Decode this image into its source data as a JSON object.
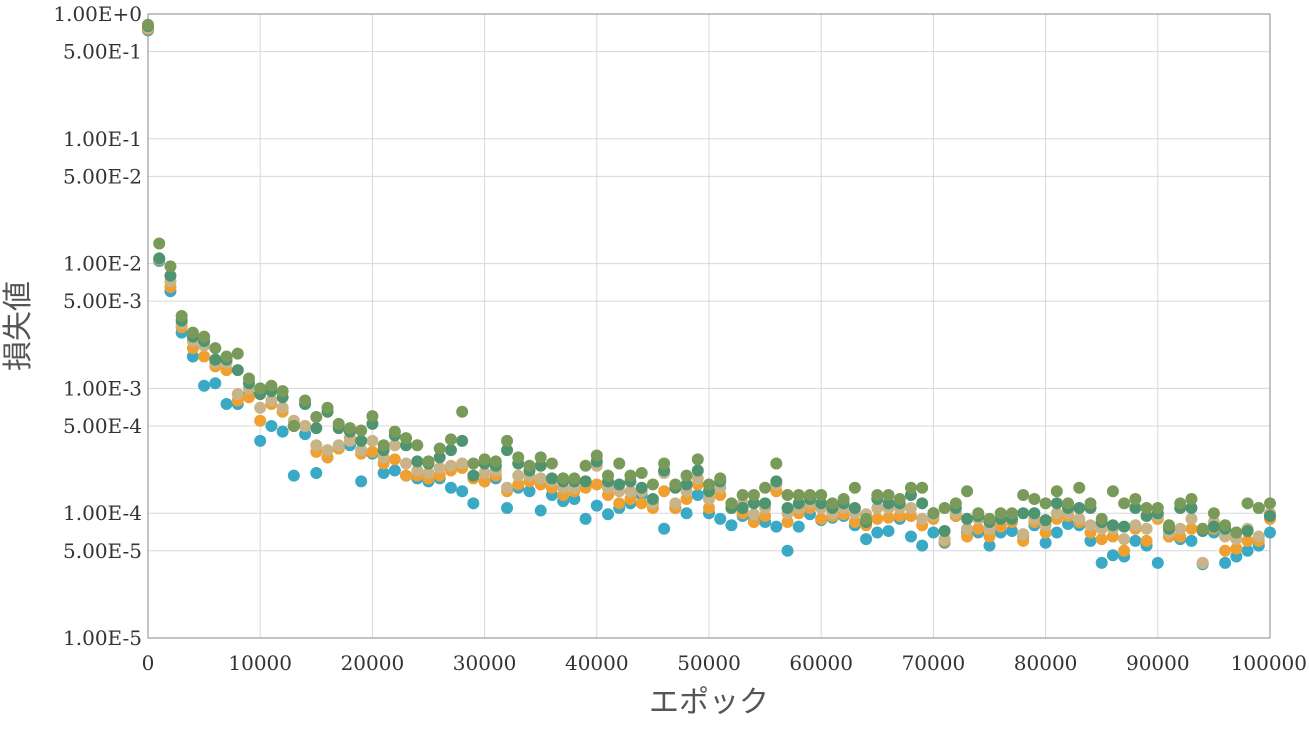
{
  "chart_data": {
    "type": "scatter",
    "title": "",
    "xlabel": "エポック",
    "ylabel": "損失値",
    "xlim": [
      0,
      100000
    ],
    "ylim": [
      1e-05,
      1
    ],
    "yscale": "log",
    "grid": true,
    "legend": "none",
    "x_ticks": [
      "0",
      "10000",
      "20000",
      "30000",
      "40000",
      "50000",
      "60000",
      "70000",
      "80000",
      "90000",
      "100000"
    ],
    "y_ticks": [
      {
        "value": 1,
        "label": "1.00E+0"
      },
      {
        "value": 0.5,
        "label": "5.00E-1"
      },
      {
        "value": 0.1,
        "label": "1.00E-1"
      },
      {
        "value": 0.05,
        "label": "5.00E-2"
      },
      {
        "value": 0.01,
        "label": "1.00E-2"
      },
      {
        "value": 0.005,
        "label": "5.00E-3"
      },
      {
        "value": 0.001,
        "label": "1.00E-3"
      },
      {
        "value": 0.0005,
        "label": "5.00E-4"
      },
      {
        "value": 0.0001,
        "label": "1.00E-4"
      },
      {
        "value": 5e-05,
        "label": "5.00E-5"
      },
      {
        "value": 1e-05,
        "label": "1.00E-5"
      }
    ],
    "x": [
      0,
      1000,
      2000,
      3000,
      4000,
      5000,
      6000,
      7000,
      8000,
      9000,
      10000,
      11000,
      12000,
      13000,
      14000,
      15000,
      16000,
      17000,
      18000,
      19000,
      20000,
      21000,
      22000,
      23000,
      24000,
      25000,
      26000,
      27000,
      28000,
      29000,
      30000,
      31000,
      32000,
      33000,
      34000,
      35000,
      36000,
      37000,
      38000,
      39000,
      40000,
      41000,
      42000,
      43000,
      44000,
      45000,
      46000,
      47000,
      48000,
      49000,
      50000,
      51000,
      52000,
      53000,
      54000,
      55000,
      56000,
      57000,
      58000,
      59000,
      60000,
      61000,
      62000,
      63000,
      64000,
      65000,
      66000,
      67000,
      68000,
      69000,
      70000,
      71000,
      72000,
      73000,
      74000,
      75000,
      76000,
      77000,
      78000,
      79000,
      80000,
      81000,
      82000,
      83000,
      84000,
      85000,
      86000,
      87000,
      88000,
      89000,
      90000,
      91000,
      92000,
      93000,
      94000,
      95000,
      96000,
      97000,
      98000,
      99000,
      100000
    ],
    "series": [
      {
        "color": "#3aa9c6",
        "values": [
          0.74,
          0.0105,
          0.006,
          0.0028,
          0.0018,
          0.00105,
          0.0011,
          0.00075,
          0.00075,
          0.0009,
          0.00038,
          0.0005,
          0.00045,
          0.0002,
          0.00043,
          0.00021,
          0.00028,
          0.00033,
          0.00035,
          0.00018,
          0.0003,
          0.00021,
          0.00022,
          0.0002,
          0.00019,
          0.00018,
          0.00019,
          0.00016,
          0.00015,
          0.00012,
          0.00018,
          0.00019,
          0.00011,
          0.00016,
          0.00015,
          0.000105,
          0.00014,
          0.000125,
          0.00013,
          9e-05,
          0.000115,
          9.8e-05,
          0.00011,
          0.00012,
          0.00014,
          0.00012,
          7.5e-05,
          0.00011,
          0.0001,
          0.00014,
          0.0001,
          9e-05,
          8e-05,
          9.5e-05,
          9e-05,
          8.5e-05,
          7.8e-05,
          5e-05,
          7.8e-05,
          9.8e-05,
          8.8e-05,
          9.2e-05,
          9.5e-05,
          8e-05,
          6.2e-05,
          7e-05,
          7.2e-05,
          9e-05,
          6.5e-05,
          5.5e-05,
          7e-05,
          5.8e-05,
          9.5e-05,
          7e-05,
          7e-05,
          5.5e-05,
          7e-05,
          7.2e-05,
          6.5e-05,
          8e-05,
          5.8e-05,
          7e-05,
          8.2e-05,
          8e-05,
          6e-05,
          4e-05,
          4.6e-05,
          4.5e-05,
          6e-05,
          5.5e-05,
          4e-05,
          6.5e-05,
          6.2e-05,
          6e-05,
          3.9e-05,
          7e-05,
          4e-05,
          4.5e-05,
          5e-05,
          5.5e-05,
          7e-05
        ]
      },
      {
        "color": "#f0a030",
        "values": [
          0.76,
          0.0108,
          0.0065,
          0.0031,
          0.0021,
          0.0018,
          0.0015,
          0.0014,
          0.0008,
          0.00085,
          0.00055,
          0.00075,
          0.00065,
          0.0005,
          0.0005,
          0.00031,
          0.00028,
          0.00033,
          0.0004,
          0.0003,
          0.00031,
          0.00025,
          0.00027,
          0.0002,
          0.0002,
          0.00019,
          0.0002,
          0.00022,
          0.00023,
          0.00019,
          0.00018,
          0.0002,
          0.00015,
          0.00017,
          0.00018,
          0.00017,
          0.00016,
          0.00014,
          0.00015,
          0.00016,
          0.00017,
          0.00014,
          0.00012,
          0.00013,
          0.00012,
          0.00011,
          0.00015,
          0.00011,
          0.00013,
          0.00017,
          0.00011,
          0.00014,
          0.00011,
          0.0001,
          8.5e-05,
          9.5e-05,
          0.00015,
          8.5e-05,
          0.0001,
          0.00011,
          9e-05,
          9.5e-05,
          9.8e-05,
          8.5e-05,
          8e-05,
          9e-05,
          9.2e-05,
          9.5e-05,
          9.5e-05,
          8e-05,
          9e-05,
          6e-05,
          9.5e-05,
          6.5e-05,
          7.5e-05,
          6.5e-05,
          7.8e-05,
          8.5e-05,
          6e-05,
          8.5e-05,
          7e-05,
          9e-05,
          9.5e-05,
          8.5e-05,
          7e-05,
          6.2e-05,
          6.5e-05,
          5e-05,
          7.5e-05,
          6e-05,
          9e-05,
          6.5e-05,
          6.5e-05,
          7.5e-05,
          4e-05,
          7.5e-05,
          5e-05,
          5.2e-05,
          6e-05,
          6e-05,
          9e-05
        ]
      },
      {
        "color": "#c8b488",
        "values": [
          0.78,
          0.011,
          0.0072,
          0.0033,
          0.0024,
          0.0022,
          0.0016,
          0.0016,
          0.0009,
          0.001,
          0.0007,
          0.0008,
          0.0007,
          0.00055,
          0.0005,
          0.00035,
          0.00032,
          0.00035,
          0.00038,
          0.00032,
          0.00038,
          0.00028,
          0.00035,
          0.00025,
          0.00022,
          0.00021,
          0.00023,
          0.00024,
          0.00025,
          0.0002,
          0.00021,
          0.00022,
          0.00016,
          0.0002,
          0.0002,
          0.00019,
          0.00018,
          0.00016,
          0.00016,
          0.00018,
          0.00024,
          0.00016,
          0.00015,
          0.00015,
          0.00015,
          0.00012,
          0.00021,
          0.00012,
          0.00015,
          0.00019,
          0.00013,
          0.00016,
          0.00012,
          0.00012,
          9.8e-05,
          0.00011,
          0.00017,
          0.0001,
          0.00011,
          0.00012,
          0.00011,
          0.0001,
          0.00011,
          0.0001,
          9.8e-05,
          0.00011,
          0.00011,
          0.00011,
          0.00011,
          9e-05,
          9.5e-05,
          6.2e-05,
          0.0001,
          7.5e-05,
          9e-05,
          7.5e-05,
          9e-05,
          9e-05,
          6.8e-05,
          9e-05,
          8e-05,
          0.0001,
          0.0001,
          9e-05,
          8e-05,
          7.5e-05,
          7.5e-05,
          6.2e-05,
          8e-05,
          7.5e-05,
          9.5e-05,
          7e-05,
          7.5e-05,
          9e-05,
          4e-05,
          8.5e-05,
          6.5e-05,
          6.2e-05,
          7.5e-05,
          6.5e-05,
          0.0001
        ]
      },
      {
        "color": "#4f9470",
        "values": [
          0.8,
          0.011,
          0.008,
          0.0035,
          0.0026,
          0.0024,
          0.0017,
          0.0017,
          0.0014,
          0.0011,
          0.0009,
          0.00095,
          0.00085,
          0.0005,
          0.00075,
          0.00048,
          0.00065,
          0.00048,
          0.00045,
          0.00038,
          0.00052,
          0.00032,
          0.00042,
          0.00035,
          0.00026,
          0.00025,
          0.00028,
          0.00032,
          0.00038,
          0.0002,
          0.00025,
          0.00024,
          0.00032,
          0.00025,
          0.00022,
          0.00024,
          0.00019,
          0.00018,
          0.00018,
          0.00018,
          0.00026,
          0.00018,
          0.00017,
          0.00018,
          0.00016,
          0.00013,
          0.00022,
          0.00016,
          0.00017,
          0.00022,
          0.00015,
          0.00018,
          0.00011,
          0.00011,
          0.00012,
          0.00012,
          0.00018,
          0.00011,
          0.00012,
          0.00013,
          0.00012,
          0.00011,
          0.00012,
          0.00011,
          8.5e-05,
          0.00013,
          0.00012,
          0.00012,
          0.00014,
          0.00012,
          0.0001,
          7.2e-05,
          0.00011,
          9e-05,
          9.5e-05,
          8.5e-05,
          9e-05,
          9e-05,
          0.0001,
          0.0001,
          8.8e-05,
          0.00012,
          0.00011,
          0.00011,
          0.00011,
          8.5e-05,
          8e-05,
          7.8e-05,
          0.00011,
          9.5e-05,
          0.0001,
          7.5e-05,
          0.00011,
          0.00011,
          7.2e-05,
          7.8e-05,
          7.5e-05,
          7e-05,
          7.2e-05,
          0.00011,
          9.5e-05
        ]
      },
      {
        "color": "#7a9a5a",
        "values": [
          0.82,
          0.0145,
          0.0095,
          0.0038,
          0.0028,
          0.0026,
          0.0021,
          0.0018,
          0.0019,
          0.0012,
          0.001,
          0.00105,
          0.00095,
          0.0005,
          0.0008,
          0.00059,
          0.0007,
          0.00052,
          0.00048,
          0.00046,
          0.0006,
          0.00035,
          0.00045,
          0.0004,
          0.00035,
          0.00026,
          0.00033,
          0.00039,
          0.00065,
          0.00025,
          0.00027,
          0.00026,
          0.00038,
          0.00028,
          0.00024,
          0.00028,
          0.00025,
          0.00019,
          0.00019,
          0.00024,
          0.00029,
          0.0002,
          0.00025,
          0.0002,
          0.00021,
          0.00017,
          0.00025,
          0.00017,
          0.0002,
          0.00027,
          0.00017,
          0.00019,
          0.00012,
          0.00014,
          0.00014,
          0.00016,
          0.00025,
          0.00014,
          0.00014,
          0.00014,
          0.00014,
          0.00012,
          0.00013,
          0.00016,
          9e-05,
          0.00014,
          0.00014,
          0.00013,
          0.00016,
          0.00016,
          0.0001,
          0.00011,
          0.00012,
          0.00015,
          0.0001,
          9e-05,
          0.0001,
          0.0001,
          0.00014,
          0.00013,
          0.00012,
          0.00015,
          0.00012,
          0.00016,
          0.00012,
          9e-05,
          0.00015,
          0.00012,
          0.00013,
          0.00011,
          0.00011,
          8e-05,
          0.00012,
          0.00013,
          7.5e-05,
          0.0001,
          8e-05,
          7e-05,
          0.00012,
          0.00011,
          0.00012
        ]
      }
    ]
  }
}
